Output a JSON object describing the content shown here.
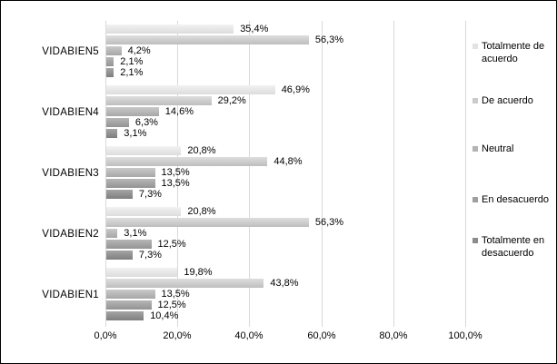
{
  "chart_data": {
    "type": "bar",
    "orientation": "horizontal",
    "title": "",
    "xlabel": "",
    "ylabel": "",
    "xlim": [
      0,
      100
    ],
    "grid": true,
    "gridline_color": "#d9d9d9",
    "legend_position": "right",
    "categories": [
      "VIDABIEN5",
      "VIDABIEN4",
      "VIDABIEN3",
      "VIDABIEN2",
      "VIDABIEN1"
    ],
    "series": [
      {
        "name": "Totalmente de acuerdo",
        "values": [
          35.4,
          46.9,
          20.8,
          20.8,
          19.8
        ],
        "labels": [
          "35,4%",
          "46,9%",
          "20,8%",
          "20,8%",
          "19,8%"
        ],
        "gradient_top": "#f2f2f2",
        "gradient_bottom": "#dcdcdc",
        "swatch": "#e3e3e3"
      },
      {
        "name": "De acuerdo",
        "values": [
          56.3,
          29.2,
          44.8,
          56.3,
          43.8
        ],
        "labels": [
          "56,3%",
          "29,2%",
          "44,8%",
          "56,3%",
          "43,8%"
        ],
        "gradient_top": "#dedede",
        "gradient_bottom": "#bdbdbd",
        "swatch": "#cbcbcb"
      },
      {
        "name": "Neutral",
        "values": [
          4.2,
          14.6,
          13.5,
          3.1,
          13.5
        ],
        "labels": [
          "4,2%",
          "14,6%",
          "13,5%",
          "3,1%",
          "13,5%"
        ],
        "gradient_top": "#c9c9c9",
        "gradient_bottom": "#a7a7a7",
        "swatch": "#b3b3b3"
      },
      {
        "name": "En desacuerdo",
        "values": [
          2.1,
          6.3,
          13.5,
          12.5,
          12.5
        ],
        "labels": [
          "2,1%",
          "6,3%",
          "13,5%",
          "12,5%",
          "12,5%"
        ],
        "gradient_top": "#b6b6b6",
        "gradient_bottom": "#939393",
        "swatch": "#9f9f9f"
      },
      {
        "name": "Totalmente en desacuerdo",
        "values": [
          2.1,
          3.1,
          7.3,
          7.3,
          10.4
        ],
        "labels": [
          "2,1%",
          "3,1%",
          "7,3%",
          "7,3%",
          "10,4%"
        ],
        "gradient_top": "#a5a5a5",
        "gradient_bottom": "#7e7e7e",
        "swatch": "#8c8c8c"
      }
    ],
    "x_ticks": [
      {
        "label": "0,0%",
        "value": 0
      },
      {
        "label": "20,0%",
        "value": 20
      },
      {
        "label": "40,0%",
        "value": 40
      },
      {
        "label": "60,0%",
        "value": 60
      },
      {
        "label": "80,0%",
        "value": 80
      },
      {
        "label": "100,0%",
        "value": 100
      }
    ]
  }
}
